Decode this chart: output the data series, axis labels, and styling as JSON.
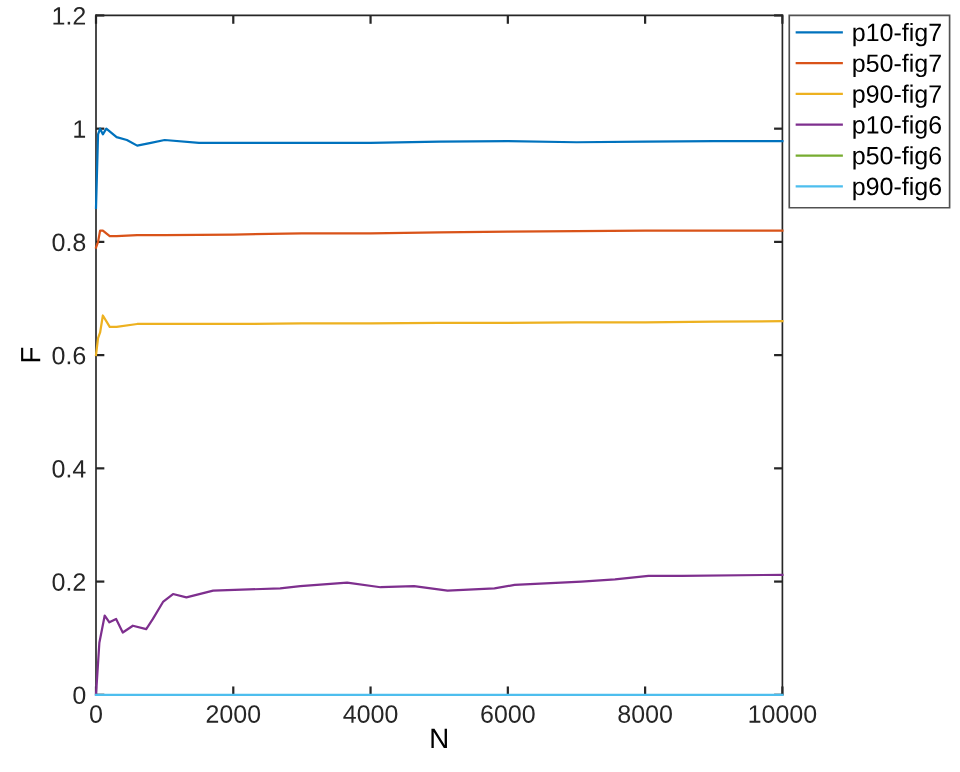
{
  "chart_data": {
    "type": "line",
    "xlabel": "N",
    "ylabel": "F",
    "xlim": [
      0,
      10000
    ],
    "xticks": [
      0,
      2000,
      4000,
      6000,
      8000,
      10000
    ],
    "ylim": [
      0,
      1.2
    ],
    "yticks": [
      0,
      0.2,
      0.4,
      0.6,
      0.8,
      1,
      1.2
    ],
    "grid": false,
    "legend": "top right",
    "marker": "none",
    "line_style": "solid",
    "series": [
      {
        "name": "p10-fig7",
        "color": "#0072bd",
        "x": [
          0,
          30,
          60,
          100,
          150,
          300,
          450,
          600,
          800,
          1000,
          1500,
          2000,
          3000,
          4000,
          5000,
          6000,
          7000,
          8000,
          9000,
          10000
        ],
        "values": [
          0.86,
          0.99,
          1.0,
          0.99,
          1.0,
          0.985,
          0.98,
          0.97,
          0.975,
          0.98,
          0.975,
          0.975,
          0.975,
          0.975,
          0.977,
          0.978,
          0.976,
          0.977,
          0.978,
          0.978
        ]
      },
      {
        "name": "p50-fig7",
        "color": "#d95319",
        "x": [
          0,
          30,
          60,
          100,
          200,
          300,
          600,
          1000,
          2000,
          3000,
          4000,
          5000,
          6000,
          7000,
          8000,
          9000,
          10000
        ],
        "values": [
          0.79,
          0.8,
          0.82,
          0.82,
          0.81,
          0.81,
          0.812,
          0.812,
          0.813,
          0.815,
          0.815,
          0.817,
          0.818,
          0.819,
          0.82,
          0.82,
          0.82
        ]
      },
      {
        "name": "p90-fig7",
        "color": "#edb120",
        "x": [
          0,
          30,
          60,
          100,
          200,
          300,
          600,
          1000,
          2000,
          3000,
          4000,
          5000,
          6000,
          7000,
          8000,
          9000,
          10000
        ],
        "values": [
          0.6,
          0.63,
          0.64,
          0.67,
          0.65,
          0.65,
          0.655,
          0.655,
          0.655,
          0.656,
          0.656,
          0.657,
          0.657,
          0.658,
          0.658,
          0.659,
          0.66
        ]
      },
      {
        "name": "p10-fig6",
        "color": "#7e2f8e",
        "x": [
          0,
          49,
          127,
          195,
          293,
          390,
          537,
          732,
          829,
          976,
          1122,
          1317,
          1707,
          2683,
          2976,
          3659,
          4146,
          4634,
          5122,
          5805,
          6098,
          7073,
          7561,
          8049,
          8537,
          10000
        ],
        "values": [
          0,
          0.092,
          0.14,
          0.128,
          0.134,
          0.11,
          0.122,
          0.116,
          0.134,
          0.164,
          0.178,
          0.172,
          0.184,
          0.188,
          0.192,
          0.198,
          0.19,
          0.192,
          0.184,
          0.188,
          0.194,
          0.2,
          0.204,
          0.21,
          0.21,
          0.212
        ]
      },
      {
        "name": "p50-fig6",
        "color": "#77ac30"
      },
      {
        "name": "p90-fig6",
        "color": "#4dbeee",
        "x": [
          0,
          10000
        ],
        "values": [
          0,
          0
        ]
      }
    ]
  }
}
